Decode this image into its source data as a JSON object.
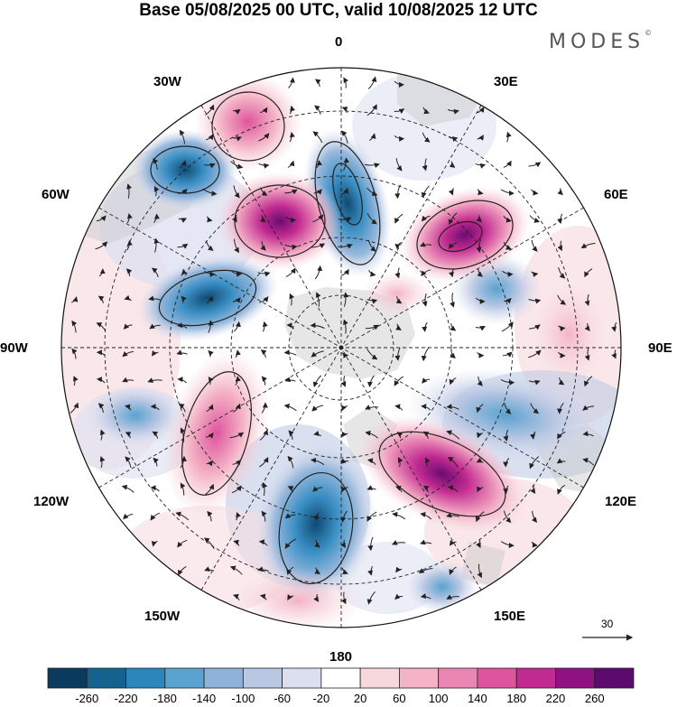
{
  "title": "Base 05/08/2025 00 UTC, valid 10/08/2025 12 UTC",
  "brand": "MODES",
  "brand_mark": "©",
  "longitude_labels": {
    "lon_0": "0",
    "lon_30e": "30E",
    "lon_60e": "60E",
    "lon_90e": "90E",
    "lon_120e": "120E",
    "lon_150e": "150E",
    "lon_180": "180",
    "lon_150w": "150W",
    "lon_120w": "120W",
    "lon_90w": "90W",
    "lon_60w": "60W",
    "lon_30w": "30W"
  },
  "vector_scale_label": "30",
  "colorbar": {
    "ticks": [
      "-260",
      "-220",
      "-180",
      "-140",
      "-100",
      "-60",
      "-20",
      "20",
      "60",
      "100",
      "140",
      "180",
      "220",
      "260"
    ],
    "colors": [
      "#0a3a5c",
      "#16628e",
      "#2d86bb",
      "#5aa2cf",
      "#8fb2d9",
      "#b9c7e3",
      "#dcdff0",
      "#ffffff",
      "#f7d8dd",
      "#f4b3c6",
      "#ea86b2",
      "#de559e",
      "#c12a90",
      "#8f1282",
      "#5c0a6e"
    ]
  },
  "anomalies": [
    {
      "name": "blue-center-north",
      "lon": -5,
      "lat": 68,
      "value": -240
    },
    {
      "name": "blue-north-atlantic",
      "lon": -42,
      "lat": 50,
      "value": -170
    },
    {
      "name": "blue-greenland-sea",
      "lon": -60,
      "lat": 68,
      "value": -150
    },
    {
      "name": "blue-canada-west",
      "lon": -75,
      "lat": 60,
      "value": -130
    },
    {
      "name": "blue-siberia",
      "lon": 95,
      "lat": 50,
      "value": -110
    },
    {
      "name": "blue-pacific",
      "lon": 170,
      "lat": 45,
      "value": -160
    },
    {
      "name": "blue-alaska",
      "lon": -170,
      "lat": 62,
      "value": -90
    },
    {
      "name": "blue-central-asia",
      "lon": 65,
      "lat": 40,
      "value": -80
    },
    {
      "name": "magenta-europe",
      "lon": 45,
      "lat": 58,
      "value": 260
    },
    {
      "name": "magenta-iceland",
      "lon": -25,
      "lat": 65,
      "value": 200
    },
    {
      "name": "magenta-east-asia",
      "lon": 140,
      "lat": 50,
      "value": 170
    },
    {
      "name": "pink-atlantic",
      "lon": -20,
      "lat": 45,
      "value": 120
    },
    {
      "name": "pink-north-america",
      "lon": -110,
      "lat": 48,
      "value": 140
    },
    {
      "name": "pink-china",
      "lon": 110,
      "lat": 38,
      "value": 90
    },
    {
      "name": "pink-kara",
      "lon": 60,
      "lat": 72,
      "value": 80
    }
  ]
}
